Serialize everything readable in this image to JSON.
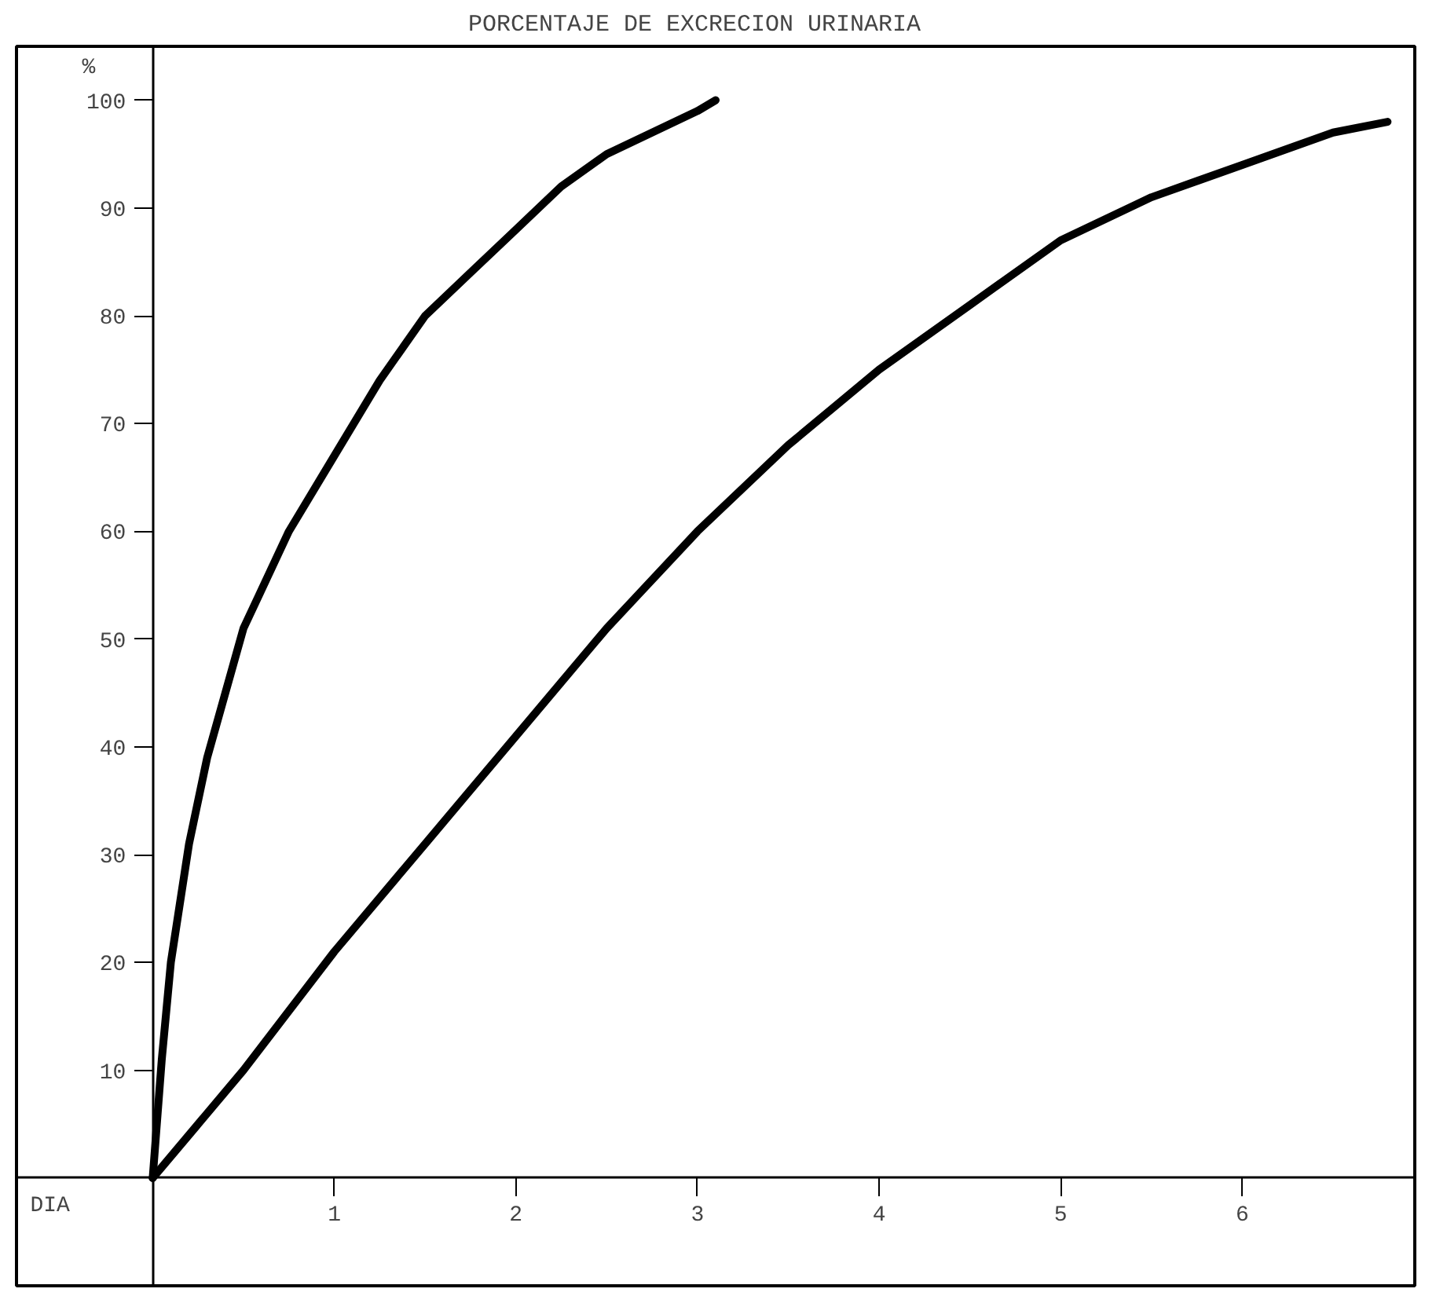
{
  "chart_data": {
    "type": "line",
    "title": "PORCENTAJE  DE  EXCRECION  URINARIA",
    "xlabel": "DIA",
    "ylabel": "%",
    "series": [
      {
        "color": "#000000",
        "x": [
          0,
          0.05,
          0.1,
          0.2,
          0.3,
          0.5,
          0.75,
          1,
          1.25,
          1.5,
          1.75,
          2,
          2.25,
          2.5,
          2.75,
          3,
          3.1
        ],
        "values": [
          0,
          11,
          20,
          31,
          39,
          51,
          60,
          67,
          74,
          80,
          84,
          88,
          92,
          95,
          97,
          99,
          100
        ]
      },
      {
        "color": "#000000",
        "x": [
          0,
          0.5,
          1,
          1.5,
          2,
          2.5,
          3,
          3.5,
          4,
          4.5,
          5,
          5.5,
          6,
          6.5,
          6.8
        ],
        "values": [
          0,
          10,
          21,
          31,
          41,
          51,
          60,
          68,
          75,
          81,
          87,
          91,
          94,
          97,
          98
        ]
      }
    ],
    "xlim": [
      -0.75,
      6.95
    ],
    "ylim": [
      -10,
      105
    ],
    "xticks": [
      1,
      2,
      3,
      4,
      5,
      6
    ],
    "yticks": [
      10,
      20,
      30,
      40,
      50,
      60,
      70,
      80,
      90,
      100
    ],
    "grid": false,
    "marker": "none",
    "line_style": "solid"
  }
}
